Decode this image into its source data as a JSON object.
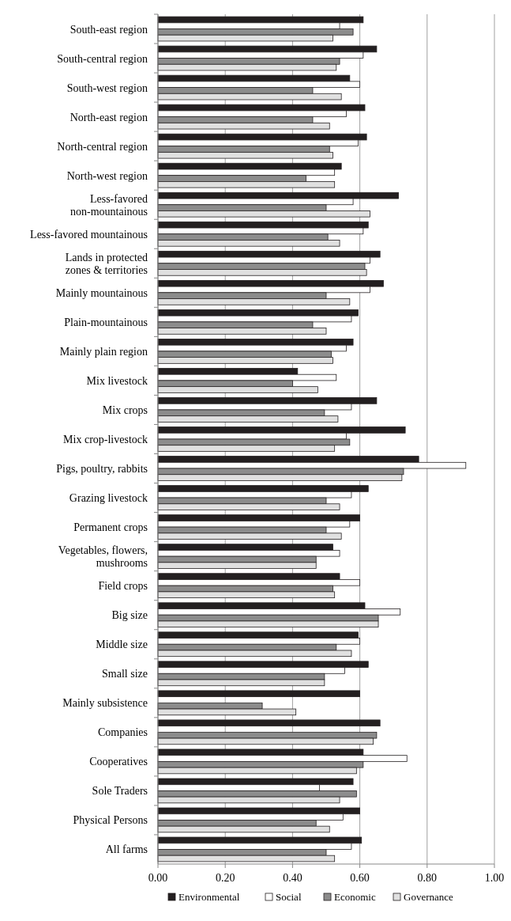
{
  "chart_data": {
    "type": "bar",
    "orientation": "horizontal",
    "categories": [
      "South-east region",
      "South-central region",
      "South-west region",
      "North-east region",
      "North-central region",
      "North-west region",
      "Less-favored non-mountainous",
      "Less-favored mountainous",
      "Lands in protected zones & territories",
      "Mainly mountainous",
      "Plain-mountainous",
      "Mainly plain region",
      "Mix livestock",
      "Mix crops",
      "Mix crop-livestock",
      "Pigs, poultry, rabbits",
      "Grazing livestock",
      "Permanent crops",
      "Vegetables, flowers, mushrooms",
      "Field crops",
      "Big size",
      "Middle size",
      "Small size",
      "Mainly subsistence",
      "Companies",
      "Cooperatives",
      "Sole Traders",
      "Physical Persons",
      "All farms"
    ],
    "series": [
      {
        "name": "Environmental",
        "color": "#231f20",
        "values": [
          0.61,
          0.65,
          0.57,
          0.615,
          0.62,
          0.545,
          0.715,
          0.625,
          0.66,
          0.67,
          0.595,
          0.58,
          0.415,
          0.65,
          0.735,
          0.775,
          0.625,
          0.6,
          0.52,
          0.54,
          0.615,
          0.595,
          0.625,
          0.6,
          0.66,
          0.61,
          0.58,
          0.6,
          0.605
        ]
      },
      {
        "name": "Social",
        "color": "#ffffff",
        "values": [
          0.54,
          0.61,
          0.6,
          0.56,
          0.595,
          0.525,
          0.58,
          0.61,
          0.63,
          0.63,
          0.575,
          0.56,
          0.53,
          0.575,
          0.56,
          0.915,
          0.575,
          0.57,
          0.54,
          0.6,
          0.72,
          0.6,
          0.555,
          null,
          null,
          0.74,
          0.48,
          0.55,
          0.575
        ]
      },
      {
        "name": "Economic",
        "color": "#8c8c8c",
        "values": [
          0.58,
          0.54,
          0.46,
          0.46,
          0.51,
          0.44,
          0.5,
          0.505,
          0.615,
          0.5,
          0.46,
          0.515,
          0.4,
          0.495,
          0.57,
          0.73,
          0.5,
          0.5,
          0.47,
          0.52,
          0.655,
          0.53,
          0.495,
          0.31,
          0.65,
          0.61,
          0.59,
          0.47,
          0.5
        ]
      },
      {
        "name": "Governance",
        "color": "#e0e0e0",
        "values": [
          0.52,
          0.53,
          0.545,
          0.51,
          0.52,
          0.525,
          0.63,
          0.54,
          0.62,
          0.57,
          0.5,
          0.52,
          0.475,
          0.535,
          0.525,
          0.725,
          0.54,
          0.545,
          0.47,
          0.525,
          0.655,
          0.575,
          0.495,
          0.41,
          0.64,
          0.59,
          0.54,
          0.51,
          0.525
        ]
      }
    ],
    "xlim": [
      0,
      1
    ],
    "xticks": [
      {
        "value": 0,
        "label": "0.00"
      },
      {
        "value": 0.2,
        "label": "0.20"
      },
      {
        "value": 0.4,
        "label": "0.40"
      },
      {
        "value": 0.6,
        "label": "0.60"
      },
      {
        "value": 0.8,
        "label": "0.80"
      },
      {
        "value": 1,
        "label": "1.00"
      }
    ],
    "grid": "x",
    "legend": "bottom"
  }
}
